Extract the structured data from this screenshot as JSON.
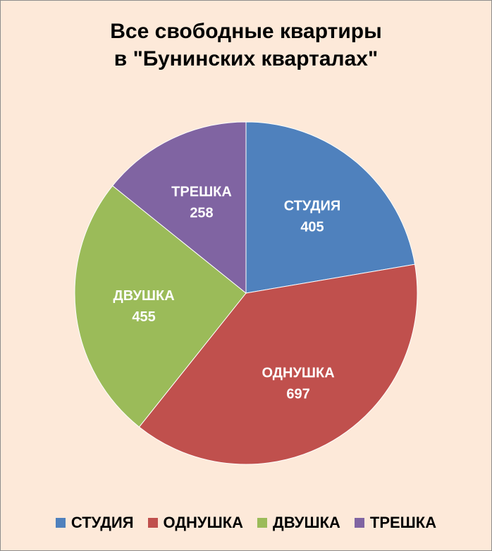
{
  "chart_data": {
    "type": "pie",
    "title": [
      "Все свободные квартиры",
      "в \"Бунинских кварталах\""
    ],
    "categories": [
      "СТУДИЯ",
      "ОДНУШКА",
      "ДВУШКА",
      "ТРЕШКА"
    ],
    "values": [
      405,
      697,
      455,
      258
    ],
    "colors": [
      "#4f81bd",
      "#c0504d",
      "#9bbb59",
      "#8064a2"
    ],
    "background_color": "#fde9d9",
    "legend_position": "bottom",
    "start_angle": "12 o'clock",
    "direction": "clockwise"
  }
}
